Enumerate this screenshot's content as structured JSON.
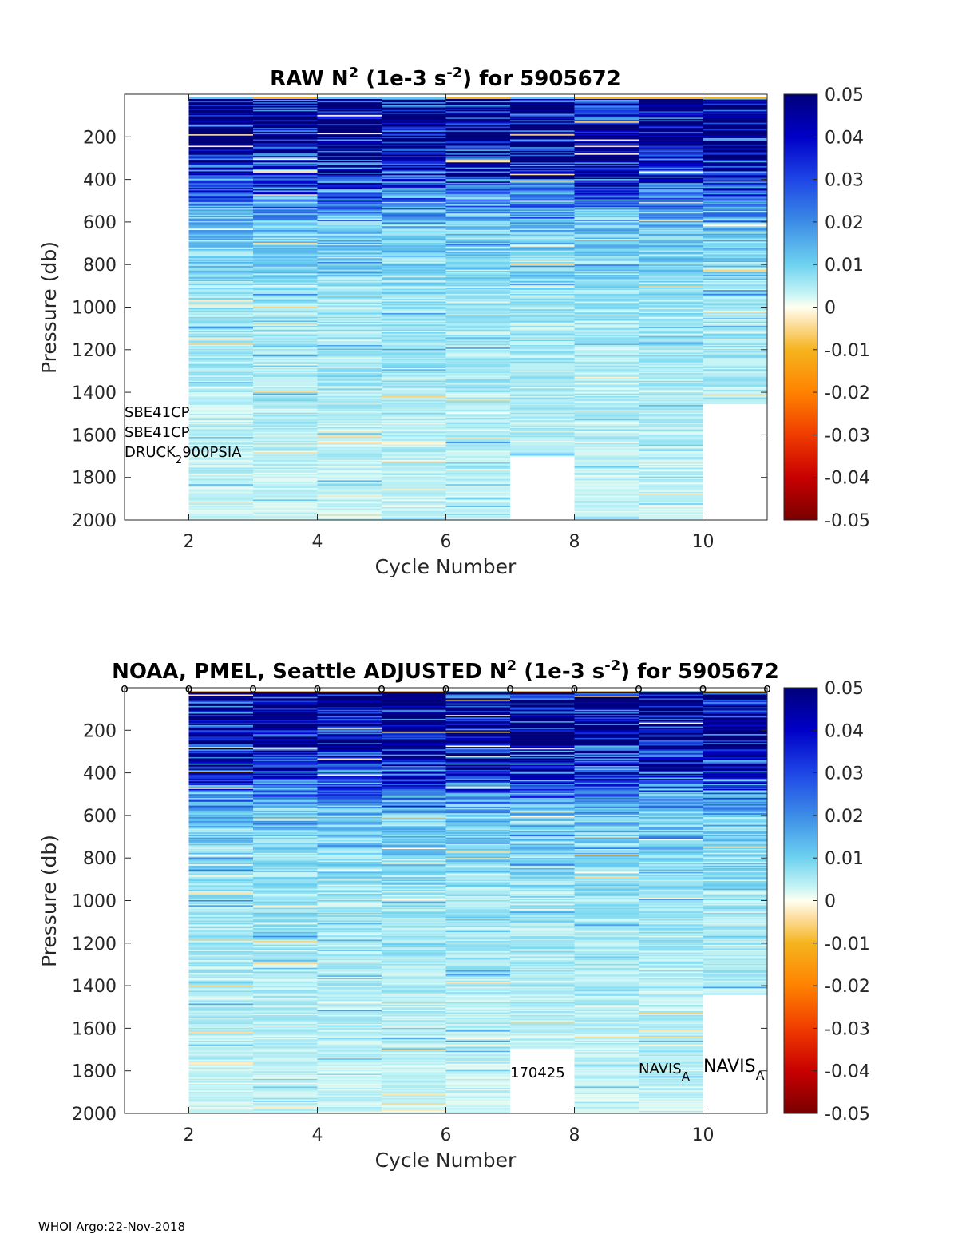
{
  "chart_data": [
    {
      "type": "heatmap",
      "title_prefix": "RAW N",
      "title_sup1": "2",
      "title_mid": " (1e-3 s",
      "title_sup2": "-2",
      "title_suffix": ") for 5905672",
      "xlabel": "Cycle Number",
      "ylabel": "Pressure (db)",
      "xlim": [
        1,
        11
      ],
      "ylim": [
        2000,
        0
      ],
      "xticks": [
        "2",
        "4",
        "6",
        "8",
        "10"
      ],
      "yticks": [
        "200",
        "400",
        "600",
        "800",
        "1000",
        "1200",
        "1400",
        "1600",
        "1800",
        "2000"
      ],
      "clim": [
        -0.05,
        0.05
      ],
      "colorbar_ticks": [
        "0.05",
        "0.04",
        "0.03",
        "0.02",
        "0.01",
        "0",
        "-0.01",
        "-0.02",
        "-0.03",
        "-0.04",
        "-0.05"
      ],
      "cycles": [
        2,
        3,
        4,
        5,
        6,
        7,
        8,
        9,
        10
      ],
      "max_pressure": [
        2000,
        2000,
        2000,
        2000,
        2000,
        1700,
        2000,
        2000,
        1450
      ],
      "annotations": [
        "SBE41CP",
        "SBE41CP",
        "DRUCK",
        "2",
        "900PSIA"
      ]
    },
    {
      "type": "heatmap",
      "title_prefix": "NOAA, PMEL, Seattle  ADJUSTED N",
      "title_sup1": "2",
      "title_mid": " (1e-3 s",
      "title_sup2": "-2",
      "title_suffix": ") for 5905672",
      "xlabel": "Cycle Number",
      "ylabel": "Pressure (db)",
      "xlim": [
        1,
        11
      ],
      "ylim": [
        2000,
        0
      ],
      "xticks": [
        "2",
        "4",
        "6",
        "8",
        "10"
      ],
      "yticks": [
        "200",
        "400",
        "600",
        "800",
        "1000",
        "1200",
        "1400",
        "1600",
        "1800",
        "2000"
      ],
      "clim": [
        -0.05,
        0.05
      ],
      "colorbar_ticks": [
        "0.05",
        "0.04",
        "0.03",
        "0.02",
        "0.01",
        "0",
        "-0.01",
        "-0.02",
        "-0.03",
        "-0.04",
        "-0.05"
      ],
      "cycles": [
        2,
        3,
        4,
        5,
        6,
        7,
        8,
        9,
        10
      ],
      "max_pressure": [
        2000,
        2000,
        2000,
        2000,
        2000,
        1690,
        2000,
        2000,
        1440
      ],
      "marker_cycles": [
        1,
        2,
        3,
        4,
        5,
        6,
        7,
        8,
        9,
        10,
        11
      ],
      "marker_symbol": "o",
      "annotations": [
        "170425",
        "NAVIS",
        "A",
        "NAVIS",
        "A"
      ]
    }
  ],
  "footer": "WHOI Argo:22-Nov-2018"
}
